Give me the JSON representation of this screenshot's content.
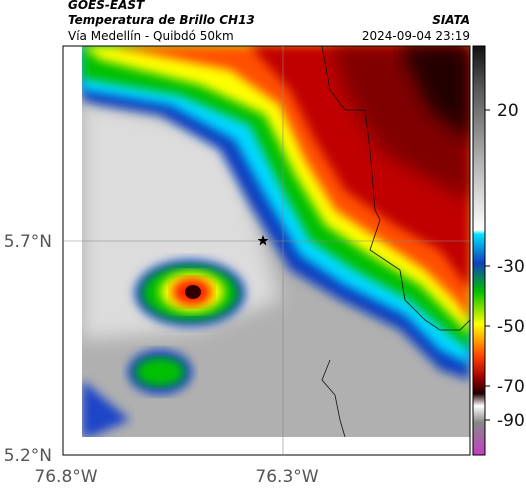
{
  "header": {
    "satellite": "GOES-EAST",
    "product": "Temperatura de Brillo CH13",
    "route": "Vía Medellín - Quibdó 50km",
    "agency": "SIATA",
    "datetime": "2024-09-04 23:19"
  },
  "map": {
    "lat_ticks": [
      "5.7°N",
      "5.2°N"
    ],
    "lon_ticks": [
      "76.8°W",
      "76.3°W"
    ]
  },
  "colorbar": {
    "ticks": [
      "20",
      "-30",
      "-50",
      "-70",
      "-90"
    ]
  }
}
